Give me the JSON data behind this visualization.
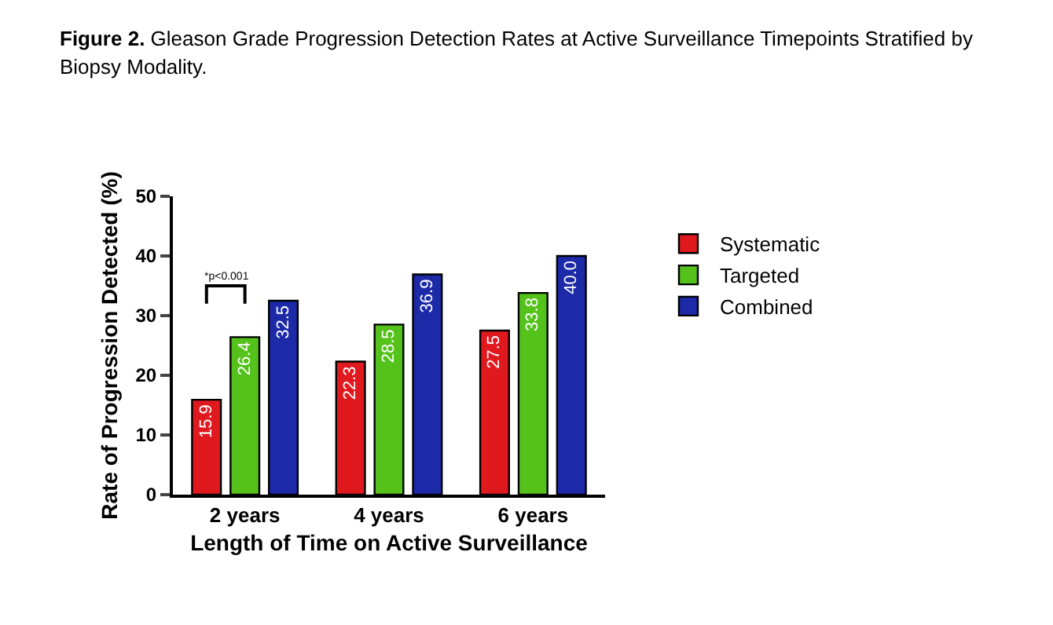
{
  "chart_data": {
    "type": "bar",
    "title": "Figure 2. Gleason Grade Progression Detection Rates at Active Surveillance Timepoints Stratified by Biopsy Modality.",
    "xlabel": "Length of Time on Active Surveillance",
    "ylabel": "Rate of Progression Detected (%)",
    "categories": [
      "2 years",
      "4 years",
      "6 years"
    ],
    "series": [
      {
        "name": "Systematic",
        "color": "#e0191f",
        "values": [
          15.9,
          22.3,
          27.5
        ]
      },
      {
        "name": "Targeted",
        "color": "#55c21b",
        "values": [
          26.4,
          28.5,
          33.8
        ]
      },
      {
        "name": "Combined",
        "color": "#1c2aa8",
        "values": [
          32.5,
          36.9,
          40.0
        ]
      }
    ],
    "value_labels": [
      [
        "15.9",
        "22.3",
        "27.5"
      ],
      [
        "26.4",
        "28.5",
        "33.8"
      ],
      [
        "32.5",
        "36.9",
        "40.0"
      ]
    ],
    "ylim": [
      0,
      50
    ],
    "yticks": [
      0,
      10,
      20,
      30,
      40,
      50
    ],
    "grid": false,
    "legend": "right",
    "annotations": [
      "*p<0.001"
    ]
  }
}
